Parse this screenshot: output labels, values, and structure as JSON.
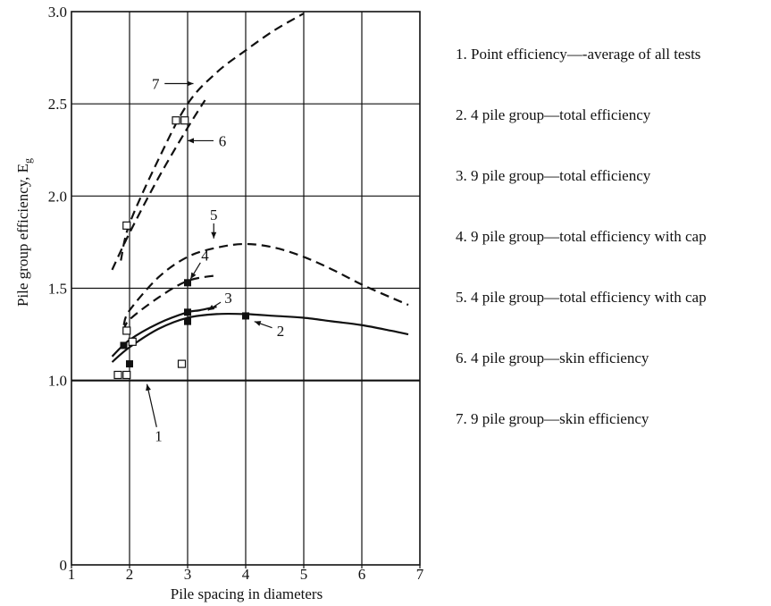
{
  "chart_data": {
    "type": "line",
    "xlabel": "Pile spacing in diameters",
    "ylabel": "Pile group efficiency, E",
    "ylabel_subscript": "g",
    "xlim": [
      1,
      7
    ],
    "ylim": [
      0,
      3.0
    ],
    "xticks": [
      "1",
      "2",
      "3",
      "4",
      "5",
      "6",
      "7"
    ],
    "yticks": [
      "0",
      "1.0",
      "1.5",
      "2.0",
      "2.5",
      "3.0"
    ],
    "grid": true,
    "legend_position": "right",
    "series": [
      {
        "name": "1",
        "style": "solid",
        "x": [
          1.0,
          7.0
        ],
        "y": [
          1.0,
          1.0
        ]
      },
      {
        "name": "2",
        "style": "solid",
        "x": [
          1.7,
          2.0,
          2.5,
          3.0,
          3.5,
          4.0,
          4.5,
          5.0,
          5.5,
          6.0,
          6.5,
          6.8
        ],
        "y": [
          1.1,
          1.18,
          1.28,
          1.34,
          1.36,
          1.36,
          1.35,
          1.34,
          1.32,
          1.3,
          1.27,
          1.25
        ]
      },
      {
        "name": "3",
        "style": "solid",
        "x": [
          1.7,
          2.0,
          2.5,
          3.0,
          3.2,
          3.5
        ],
        "y": [
          1.13,
          1.22,
          1.31,
          1.37,
          1.38,
          1.4
        ]
      },
      {
        "name": "4",
        "style": "dashed",
        "x": [
          1.9,
          2.0,
          2.5,
          3.0,
          3.5
        ],
        "y": [
          1.27,
          1.33,
          1.45,
          1.54,
          1.57
        ]
      },
      {
        "name": "5",
        "style": "dashed",
        "x": [
          1.9,
          2.0,
          2.5,
          3.0,
          3.5,
          4.0,
          4.5,
          5.0,
          5.5,
          6.0,
          6.5,
          6.8
        ],
        "y": [
          1.3,
          1.38,
          1.56,
          1.67,
          1.72,
          1.74,
          1.72,
          1.67,
          1.6,
          1.52,
          1.45,
          1.41
        ]
      },
      {
        "name": "6",
        "style": "dashed",
        "x": [
          1.7,
          2.0,
          2.5,
          3.0,
          3.3
        ],
        "y": [
          1.6,
          1.8,
          2.1,
          2.37,
          2.52
        ]
      },
      {
        "name": "7",
        "style": "dashed",
        "x": [
          1.85,
          2.0,
          2.5,
          3.0,
          3.5,
          4.0,
          4.5,
          5.0
        ],
        "y": [
          1.65,
          1.85,
          2.2,
          2.5,
          2.67,
          2.79,
          2.9,
          2.99
        ]
      }
    ],
    "points_filled": [
      {
        "x": 1.9,
        "y": 1.19
      },
      {
        "x": 2.0,
        "y": 1.09
      },
      {
        "x": 3.0,
        "y": 1.53
      },
      {
        "x": 3.0,
        "y": 1.37
      },
      {
        "x": 3.0,
        "y": 1.32
      },
      {
        "x": 4.0,
        "y": 1.35
      }
    ],
    "points_open": [
      {
        "x": 1.8,
        "y": 1.03
      },
      {
        "x": 1.95,
        "y": 1.03
      },
      {
        "x": 1.95,
        "y": 1.27
      },
      {
        "x": 2.05,
        "y": 1.21
      },
      {
        "x": 2.9,
        "y": 1.09
      },
      {
        "x": 1.95,
        "y": 1.84
      },
      {
        "x": 2.8,
        "y": 2.41
      },
      {
        "x": 2.95,
        "y": 2.41
      }
    ],
    "curve_labels": [
      {
        "text": "1",
        "x": 2.5,
        "y": 0.7,
        "ax": 2.3,
        "ay": 0.98
      },
      {
        "text": "2",
        "x": 4.6,
        "y": 1.27,
        "ax": 4.15,
        "ay": 1.32
      },
      {
        "text": "3",
        "x": 3.7,
        "y": 1.45,
        "ax": 3.35,
        "ay": 1.38
      },
      {
        "text": "4",
        "x": 3.3,
        "y": 1.68,
        "ax": 3.05,
        "ay": 1.55
      },
      {
        "text": "5",
        "x": 3.45,
        "y": 1.9,
        "ax": 3.45,
        "ay": 1.77
      },
      {
        "text": "6",
        "x": 3.6,
        "y": 2.3,
        "ax": 3.0,
        "ay": 2.3
      },
      {
        "text": "7",
        "x": 2.45,
        "y": 2.61,
        "ax": 3.1,
        "ay": 2.61
      }
    ]
  },
  "legend": [
    "1. Point efficiency—-average of all tests",
    "2. 4 pile group—total efficiency",
    "3. 9 pile group—total efficiency",
    "4. 9 pile group—total efficiency with cap",
    "5. 4 pile group—total efficiency with cap",
    "6. 4 pile group—skin efficiency",
    "7. 9 pile group—skin efficiency"
  ]
}
